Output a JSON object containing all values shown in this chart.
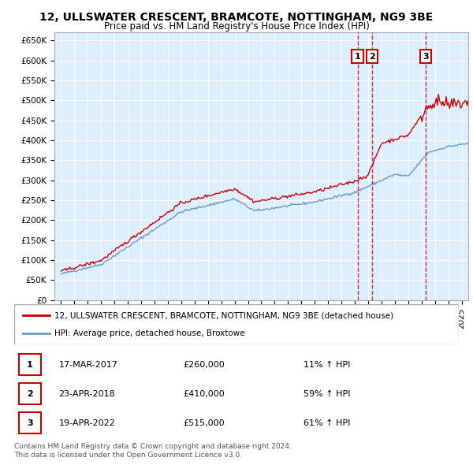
{
  "title": "12, ULLSWATER CRESCENT, BRAMCOTE, NOTTINGHAM, NG9 3BE",
  "subtitle": "Price paid vs. HM Land Registry's House Price Index (HPI)",
  "legend_line1": "12, ULLSWATER CRESCENT, BRAMCOTE, NOTTINGHAM, NG9 3BE (detached house)",
  "legend_line2": "HPI: Average price, detached house, Broxtowe",
  "footer1": "Contains HM Land Registry data © Crown copyright and database right 2024.",
  "footer2": "This data is licensed under the Open Government Licence v3.0.",
  "transactions": [
    {
      "num": "1",
      "date": "17-MAR-2017",
      "price": "£260,000",
      "pct": "11% ↑ HPI"
    },
    {
      "num": "2",
      "date": "23-APR-2018",
      "price": "£410,000",
      "pct": "59% ↑ HPI"
    },
    {
      "num": "3",
      "date": "19-APR-2022",
      "price": "£515,000",
      "pct": "61% ↑ HPI"
    }
  ],
  "sale_dates": [
    2017.21,
    2018.31,
    2022.3
  ],
  "sale_prices": [
    260000,
    410000,
    515000
  ],
  "red_color": "#cc0000",
  "blue_color": "#6699cc",
  "background_color": "#ddeeff",
  "ylim": [
    0,
    650000
  ],
  "yticks": [
    0,
    50000,
    100000,
    150000,
    200000,
    250000,
    300000,
    350000,
    400000,
    450000,
    500000,
    550000,
    600000,
    650000
  ]
}
